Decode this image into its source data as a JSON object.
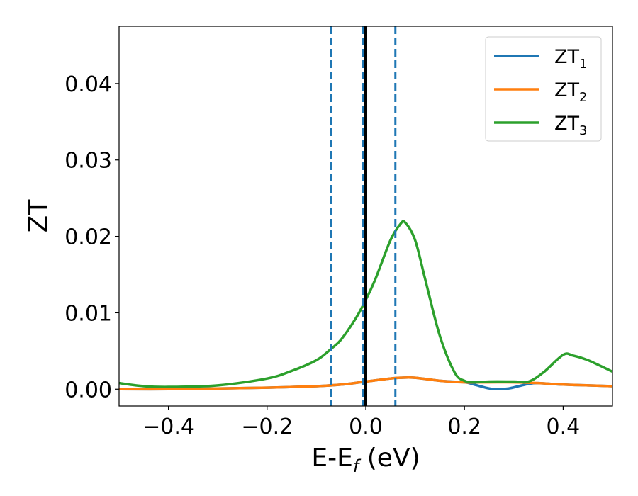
{
  "chart_data": {
    "type": "line",
    "xlabel": {
      "main": "E-E",
      "sub": "f",
      "suffix": " (eV)"
    },
    "ylabel": "ZT",
    "xlim": [
      -0.5,
      0.5
    ],
    "ylim": [
      -0.0022,
      0.0475
    ],
    "x_ticks": [
      -0.4,
      -0.2,
      0.0,
      0.2,
      0.4
    ],
    "x_tick_labels": [
      "−0.4",
      "−0.2",
      "0.0",
      "0.2",
      "0.4"
    ],
    "y_ticks": [
      0.0,
      0.01,
      0.02,
      0.03,
      0.04
    ],
    "y_tick_labels": [
      "0.00",
      "0.01",
      "0.02",
      "0.03",
      "0.04"
    ],
    "grid": false,
    "legend_position": "top-right",
    "vlines": [
      {
        "x": -0.07,
        "style": "dashed",
        "color": "#1f77b4"
      },
      {
        "x": -0.005,
        "style": "dashed",
        "color": "#1f77b4"
      },
      {
        "x": 0.06,
        "style": "dashed",
        "color": "#1f77b4"
      },
      {
        "x": 0.0,
        "style": "solid",
        "color": "#000000"
      }
    ],
    "series": [
      {
        "name": "ZT",
        "sub": "1",
        "color": "#1f77b4",
        "x": [
          -0.5,
          -0.4,
          -0.3,
          -0.2,
          -0.1,
          -0.05,
          0.0,
          0.05,
          0.07,
          0.1,
          0.15,
          0.2,
          0.22,
          0.25,
          0.27,
          0.29,
          0.31,
          0.33,
          0.35,
          0.4,
          0.45,
          0.5
        ],
        "y": [
          0.0,
          0.0,
          0.0001,
          0.0002,
          0.0004,
          0.0006,
          0.001,
          0.0014,
          0.0015,
          0.0015,
          0.0011,
          0.0009,
          0.0006,
          0.0001,
          0.0,
          0.0001,
          0.0004,
          0.0007,
          0.0008,
          0.0006,
          0.0005,
          0.0004
        ]
      },
      {
        "name": "ZT",
        "sub": "2",
        "color": "#ff7f0e",
        "x": [
          -0.5,
          -0.4,
          -0.3,
          -0.2,
          -0.1,
          -0.05,
          0.0,
          0.05,
          0.07,
          0.1,
          0.15,
          0.2,
          0.25,
          0.3,
          0.35,
          0.4,
          0.45,
          0.5
        ],
        "y": [
          0.0,
          0.0,
          0.0001,
          0.0002,
          0.0004,
          0.0006,
          0.001,
          0.0014,
          0.0015,
          0.0015,
          0.0011,
          0.0009,
          0.0009,
          0.0009,
          0.0008,
          0.0006,
          0.0005,
          0.0004
        ]
      },
      {
        "name": "ZT",
        "sub": "3",
        "color": "#2ca02c",
        "x": [
          -0.5,
          -0.45,
          -0.4,
          -0.3,
          -0.2,
          -0.15,
          -0.1,
          -0.07,
          -0.05,
          -0.02,
          0.0,
          0.02,
          0.05,
          0.07,
          0.08,
          0.1,
          0.12,
          0.15,
          0.18,
          0.2,
          0.22,
          0.25,
          0.3,
          0.33,
          0.36,
          0.4,
          0.42,
          0.45,
          0.5
        ],
        "y": [
          0.0008,
          0.0004,
          0.0003,
          0.0005,
          0.0014,
          0.0024,
          0.0038,
          0.0053,
          0.0065,
          0.0093,
          0.0117,
          0.0145,
          0.0195,
          0.0216,
          0.0218,
          0.0195,
          0.0145,
          0.007,
          0.0022,
          0.0011,
          0.0009,
          0.001,
          0.001,
          0.001,
          0.0022,
          0.0045,
          0.0044,
          0.0038,
          0.0023
        ]
      }
    ]
  }
}
